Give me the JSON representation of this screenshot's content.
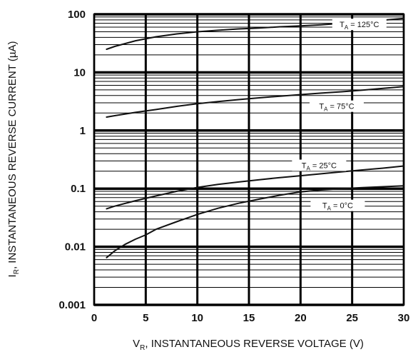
{
  "chart_data": {
    "type": "line",
    "title": "",
    "xlabel": "V",
    "xlabel_sub": "R",
    "xlabel_rest": ", INSTANTANEOUS REVERSE VOLTAGE (V)",
    "ylabel": "I",
    "ylabel_sub": "R",
    "ylabel_rest": ", INSTANTANEOUS REVERSE CURRENT (µA)",
    "xlim": [
      0,
      30
    ],
    "ylim": [
      0.001,
      100
    ],
    "yscale": "log",
    "grid": true,
    "x_ticks": [
      {
        "value": 0,
        "label": "0"
      },
      {
        "value": 5,
        "label": "5"
      },
      {
        "value": 10,
        "label": "10"
      },
      {
        "value": 15,
        "label": "15"
      },
      {
        "value": 20,
        "label": "20"
      },
      {
        "value": 25,
        "label": "25"
      },
      {
        "value": 30,
        "label": "30"
      }
    ],
    "y_ticks": [
      {
        "value": 0.001,
        "label": "0.001"
      },
      {
        "value": 0.01,
        "label": "0.01"
      },
      {
        "value": 0.1,
        "label": "0.1"
      },
      {
        "value": 1,
        "label": "1"
      },
      {
        "value": 10,
        "label": "10"
      },
      {
        "value": 100,
        "label": "100"
      }
    ],
    "series": [
      {
        "name": "125°C",
        "label_sub": "A",
        "x": [
          1.2,
          2,
          4,
          6,
          8,
          10,
          12,
          14,
          16,
          18,
          20,
          22,
          24,
          26,
          28,
          30
        ],
        "y": [
          25,
          28,
          35,
          41,
          46,
          50,
          53,
          56,
          58,
          61,
          63,
          66,
          70,
          74,
          79,
          85
        ]
      },
      {
        "name": "75°C",
        "label_sub": "A",
        "x": [
          1.2,
          2,
          4,
          6,
          8,
          10,
          12,
          14,
          16,
          18,
          20,
          22,
          24,
          26,
          28,
          30
        ],
        "y": [
          1.7,
          1.8,
          2.05,
          2.3,
          2.6,
          2.9,
          3.15,
          3.4,
          3.65,
          3.9,
          4.15,
          4.4,
          4.65,
          4.95,
          5.3,
          5.7
        ]
      },
      {
        "name": "25°C",
        "label_sub": "A",
        "x": [
          1.2,
          2,
          4,
          6,
          8,
          10,
          12,
          14,
          16,
          18,
          20,
          22,
          24,
          26,
          28,
          30
        ],
        "y": [
          0.045,
          0.05,
          0.062,
          0.075,
          0.09,
          0.105,
          0.118,
          0.13,
          0.142,
          0.155,
          0.167,
          0.18,
          0.195,
          0.21,
          0.225,
          0.245
        ]
      },
      {
        "name": "0°C",
        "label_sub": "A",
        "x": [
          1.2,
          2,
          3,
          4,
          5,
          6,
          8,
          10,
          12,
          14,
          16,
          18,
          20,
          22,
          24,
          26,
          28,
          30
        ],
        "y": [
          0.0065,
          0.0085,
          0.011,
          0.0135,
          0.016,
          0.02,
          0.027,
          0.036,
          0.046,
          0.056,
          0.066,
          0.077,
          0.088,
          0.095,
          0.1,
          0.104,
          0.108,
          0.112
        ]
      }
    ]
  }
}
